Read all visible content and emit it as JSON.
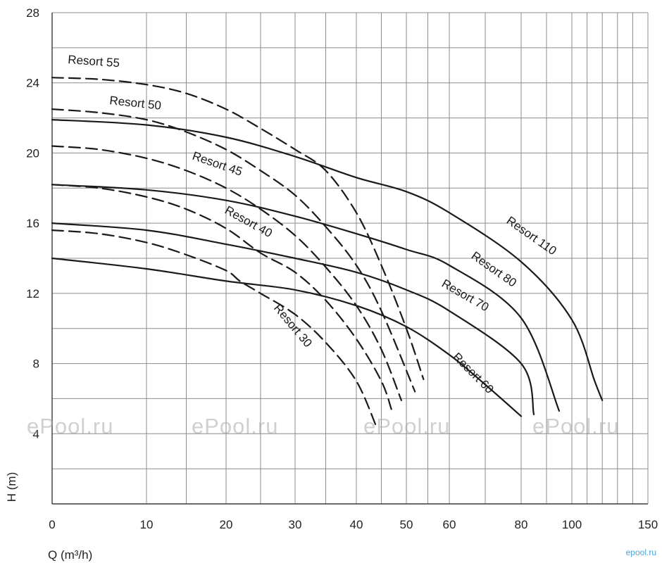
{
  "chart_data": {
    "type": "line",
    "xlabel": "Q (m³/h)",
    "ylabel": "H (m)",
    "x_ticks": [
      0,
      10,
      20,
      30,
      40,
      50,
      60,
      80,
      100,
      150
    ],
    "x_tick_labels": [
      "0",
      "10",
      "20",
      "30",
      "40",
      "50",
      "60",
      "80",
      "100",
      "150"
    ],
    "x_scale": "nonlinear",
    "y_ticks": [
      4,
      8,
      12,
      16,
      20,
      24,
      28
    ],
    "y_tick_labels": [
      "4",
      "8",
      "12",
      "16",
      "20",
      "24",
      "28"
    ],
    "ylim": [
      0,
      28
    ],
    "xlim": [
      0,
      150
    ],
    "grid": true,
    "series": [
      {
        "name": "Resort 30",
        "style": "dashed",
        "points": [
          [
            0,
            15.6
          ],
          [
            5,
            15.4
          ],
          [
            10,
            14.9
          ],
          [
            15,
            14.2
          ],
          [
            20,
            13.3
          ],
          [
            22,
            12.7
          ],
          [
            25,
            12.0
          ],
          [
            30,
            10.8
          ],
          [
            35,
            9.2
          ],
          [
            40,
            7.0
          ],
          [
            44,
            4.4
          ]
        ]
      },
      {
        "name": "Resort 40",
        "style": "dashed",
        "points": [
          [
            0,
            18.2
          ],
          [
            5,
            18.0
          ],
          [
            10,
            17.5
          ],
          [
            15,
            16.8
          ],
          [
            20,
            15.7
          ],
          [
            25,
            14.3
          ],
          [
            30,
            13.2
          ],
          [
            35,
            11.6
          ],
          [
            40,
            9.4
          ],
          [
            45,
            7.0
          ],
          [
            47,
            5.4
          ]
        ]
      },
      {
        "name": "Resort 45",
        "style": "dashed",
        "points": [
          [
            0,
            20.4
          ],
          [
            5,
            20.2
          ],
          [
            10,
            19.7
          ],
          [
            15,
            19.0
          ],
          [
            20,
            18.0
          ],
          [
            25,
            16.8
          ],
          [
            30,
            15.3
          ],
          [
            35,
            13.5
          ],
          [
            40,
            11.3
          ],
          [
            45,
            8.8
          ],
          [
            49,
            5.9
          ]
        ]
      },
      {
        "name": "Resort 50",
        "style": "dashed",
        "points": [
          [
            0,
            22.5
          ],
          [
            5,
            22.3
          ],
          [
            10,
            21.9
          ],
          [
            15,
            21.2
          ],
          [
            20,
            20.2
          ],
          [
            25,
            19.0
          ],
          [
            30,
            17.6
          ],
          [
            35,
            15.8
          ],
          [
            40,
            13.6
          ],
          [
            45,
            11.0
          ],
          [
            52,
            6.4
          ]
        ]
      },
      {
        "name": "Resort 55",
        "style": "dashed",
        "points": [
          [
            0,
            24.3
          ],
          [
            5,
            24.2
          ],
          [
            10,
            23.9
          ],
          [
            15,
            23.4
          ],
          [
            20,
            22.5
          ],
          [
            25,
            21.4
          ],
          [
            30,
            20.2
          ],
          [
            35,
            19.0
          ],
          [
            40,
            16.6
          ],
          [
            45,
            13.6
          ],
          [
            50,
            10.0
          ],
          [
            54,
            7.1
          ]
        ]
      },
      {
        "name": "Resort 60",
        "style": "solid",
        "points": [
          [
            0,
            14.0
          ],
          [
            10,
            13.4
          ],
          [
            20,
            12.7
          ],
          [
            30,
            12.2
          ],
          [
            40,
            11.3
          ],
          [
            50,
            10.1
          ],
          [
            60,
            8.5
          ],
          [
            70,
            6.8
          ],
          [
            80,
            5.0
          ]
        ]
      },
      {
        "name": "Resort 70",
        "style": "solid",
        "points": [
          [
            0,
            16.0
          ],
          [
            10,
            15.6
          ],
          [
            20,
            14.8
          ],
          [
            30,
            14.0
          ],
          [
            40,
            13.2
          ],
          [
            50,
            12.2
          ],
          [
            60,
            11.0
          ],
          [
            80,
            8.0
          ],
          [
            85,
            5.1
          ]
        ]
      },
      {
        "name": "Resort 80",
        "style": "solid",
        "points": [
          [
            0,
            18.2
          ],
          [
            10,
            17.9
          ],
          [
            20,
            17.3
          ],
          [
            30,
            16.4
          ],
          [
            40,
            15.4
          ],
          [
            50,
            14.5
          ],
          [
            60,
            13.6
          ],
          [
            80,
            10.6
          ],
          [
            95,
            5.3
          ]
        ]
      },
      {
        "name": "Resort 110",
        "style": "solid",
        "points": [
          [
            0,
            21.9
          ],
          [
            10,
            21.6
          ],
          [
            20,
            20.9
          ],
          [
            30,
            19.8
          ],
          [
            40,
            18.6
          ],
          [
            50,
            17.8
          ],
          [
            60,
            16.6
          ],
          [
            80,
            13.8
          ],
          [
            100,
            10.5
          ],
          [
            115,
            7.0
          ],
          [
            120,
            5.9
          ]
        ]
      }
    ]
  },
  "watermarks": [
    "ePool.ru",
    "ePool.ru",
    "ePool.ru",
    "ePool.ru"
  ],
  "corner_mark": "epool.ru"
}
